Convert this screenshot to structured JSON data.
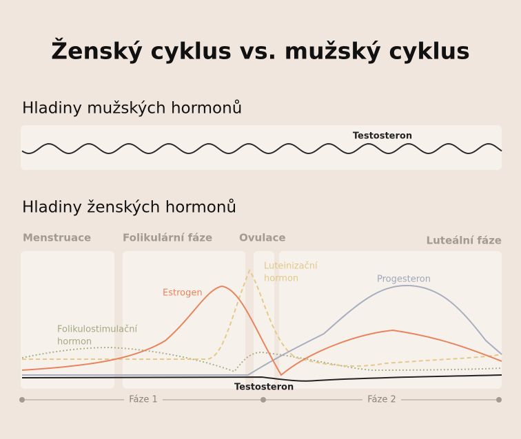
{
  "title": "Ženský cyklus vs. mužský cyklus",
  "male": {
    "heading": "Hladiny mužských hormonů",
    "label": "Testosteron"
  },
  "female": {
    "heading": "Hladiny ženských hormonů",
    "phases": [
      "Menstruace",
      "Folikulární fáze",
      "Ovulace",
      "Luteální fáze"
    ],
    "labels": {
      "estrogen": "Estrogen",
      "lh": [
        "Luteinizační",
        "hormon"
      ],
      "progesterone": "Progesteron",
      "fsh": [
        "Folikulostimulační",
        "hormon"
      ],
      "testosterone": "Testosteron"
    },
    "timeline": [
      "Fáze 1",
      "Fáze 2"
    ]
  }
}
